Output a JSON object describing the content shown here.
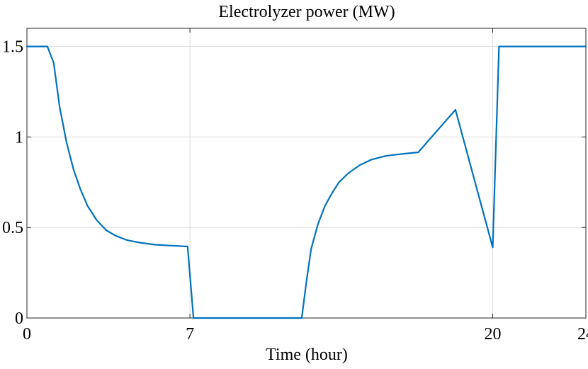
{
  "chart_data": {
    "type": "line",
    "title": "Electrolyzer power (MW)",
    "xlabel": "Time (hour)",
    "ylabel": "",
    "xlim": [
      0,
      24
    ],
    "ylim": [
      0,
      1.6
    ],
    "xticks": [
      0,
      7,
      20,
      24
    ],
    "xtick_labels": [
      "0",
      "7",
      "20",
      "24"
    ],
    "yticks": [
      0,
      0.5,
      1,
      1.5
    ],
    "ytick_labels": [
      "0",
      "0.5",
      "1",
      "1.5"
    ],
    "grid": true,
    "legend": "none",
    "series": [
      {
        "color": "#0072bd",
        "x": [
          0,
          0.88,
          1.15,
          1.4,
          1.7,
          2.0,
          2.3,
          2.6,
          3.0,
          3.4,
          3.8,
          4.3,
          4.9,
          5.5,
          6.2,
          6.9,
          7.15,
          8.0,
          9.5,
          11.0,
          11.8,
          12.0,
          12.2,
          12.5,
          12.8,
          13.1,
          13.4,
          13.8,
          14.3,
          14.8,
          15.4,
          16.0,
          16.4,
          16.8,
          18.4,
          20.0,
          20.27,
          24.0
        ],
        "y": [
          1.5,
          1.5,
          1.41,
          1.17,
          0.97,
          0.82,
          0.71,
          0.62,
          0.54,
          0.485,
          0.455,
          0.43,
          0.415,
          0.405,
          0.4,
          0.395,
          0.0,
          0.0,
          0.0,
          0.0,
          0.0,
          0.2,
          0.38,
          0.52,
          0.62,
          0.69,
          0.75,
          0.8,
          0.845,
          0.875,
          0.895,
          0.905,
          0.91,
          0.915,
          1.15,
          0.39,
          1.5,
          1.5
        ]
      }
    ]
  }
}
